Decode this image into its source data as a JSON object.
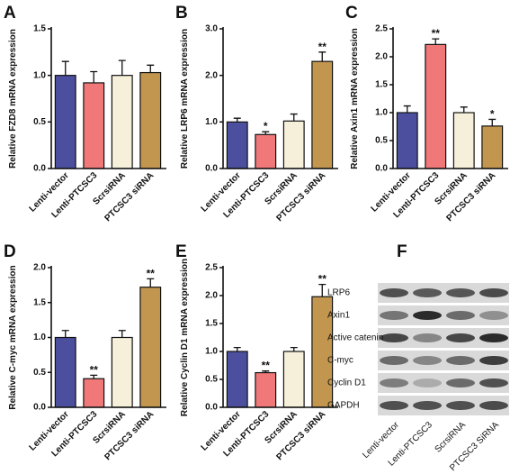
{
  "chart_data": [
    {
      "type": "bar",
      "panel": "A",
      "y_label": "Relative FZD8 mRNA expression",
      "categories": [
        "Lenti-vector",
        "Lenti-PTCSC3",
        "ScrsiRNA",
        "PTCSC3 siRNA"
      ],
      "values": [
        1.0,
        0.92,
        1.0,
        1.03
      ],
      "errors": [
        0.15,
        0.12,
        0.16,
        0.08
      ],
      "significance": [
        null,
        null,
        null,
        null
      ],
      "colors": [
        "#4b4f9e",
        "#f07878",
        "#f6f0da",
        "#c3964f"
      ],
      "ylim": [
        0,
        1.5
      ],
      "yticks": [
        {
          "value": 0,
          "label": "0.0"
        },
        {
          "value": 0.5,
          "label": "0.5"
        },
        {
          "value": 1,
          "label": "1.0"
        },
        {
          "value": 1.5,
          "label": "1.5"
        }
      ]
    },
    {
      "type": "bar",
      "panel": "B",
      "y_label": "Relative LRP6 mRNA expression",
      "categories": [
        "Lenti-vector",
        "Lenti-PTCSC3",
        "ScrsiRNA",
        "PTCSC3 siRNA"
      ],
      "values": [
        1.0,
        0.73,
        1.02,
        2.3
      ],
      "errors": [
        0.08,
        0.06,
        0.15,
        0.2
      ],
      "significance": [
        null,
        "*",
        null,
        "**"
      ],
      "colors": [
        "#4b4f9e",
        "#f07878",
        "#f6f0da",
        "#c3964f"
      ],
      "ylim": [
        0,
        3
      ],
      "yticks": [
        {
          "value": 0,
          "label": "0.0"
        },
        {
          "value": 1,
          "label": "1.0"
        },
        {
          "value": 2,
          "label": "2.0"
        },
        {
          "value": 3,
          "label": "3.0"
        }
      ]
    },
    {
      "type": "bar",
      "panel": "C",
      "y_label": "Relative Axin1 mRNA expression",
      "categories": [
        "Lenti-vector",
        "Lenti-PTCSC3",
        "ScrsiRNA",
        "PTCSC3 siRNA"
      ],
      "values": [
        1.0,
        2.22,
        1.0,
        0.76
      ],
      "errors": [
        0.12,
        0.1,
        0.1,
        0.12
      ],
      "significance": [
        null,
        "**",
        null,
        "*"
      ],
      "colors": [
        "#4b4f9e",
        "#f07878",
        "#f6f0da",
        "#c3964f"
      ],
      "ylim": [
        0,
        2.5
      ],
      "yticks": [
        {
          "value": 0,
          "label": "0.0"
        },
        {
          "value": 0.5,
          "label": "0.5"
        },
        {
          "value": 1,
          "label": "1.0"
        },
        {
          "value": 1.5,
          "label": "1.5"
        },
        {
          "value": 2,
          "label": "2.0"
        },
        2.5
      ]
    },
    {
      "type": "bar",
      "panel": "D",
      "y_label": "Relative C-myc mRNA expression",
      "categories": [
        "Lenti-vector",
        "Lenti-PTCSC3",
        "ScrsiRNA",
        "PTCSC3 siRNA"
      ],
      "values": [
        1.0,
        0.41,
        1.0,
        1.72
      ],
      "errors": [
        0.1,
        0.05,
        0.1,
        0.12
      ],
      "significance": [
        null,
        "**",
        null,
        "**"
      ],
      "colors": [
        "#4b4f9e",
        "#f07878",
        "#f6f0da",
        "#c3964f"
      ],
      "ylim": [
        0,
        2
      ],
      "yticks": [
        {
          "value": 0,
          "label": "0.0"
        },
        {
          "value": 0.5,
          "label": "0.5"
        },
        {
          "value": 1,
          "label": "1.0"
        },
        {
          "value": 1.5,
          "label": "1.5"
        },
        {
          "value": 2,
          "label": "2.0"
        }
      ]
    },
    {
      "type": "bar",
      "panel": "E",
      "y_label": "Relative Cyclin D1 mRNA expression",
      "categories": [
        "Lenti-vector",
        "Lenti-PTCSC3",
        "ScrsiRNA",
        "PTCSC3 siRNA"
      ],
      "values": [
        1.0,
        0.62,
        1.0,
        1.98
      ],
      "errors": [
        0.07,
        0.03,
        0.07,
        0.22
      ],
      "significance": [
        null,
        "**",
        null,
        "**"
      ],
      "colors": [
        "#4b4f9e",
        "#f07878",
        "#f6f0da",
        "#c3964f"
      ],
      "ylim": [
        0,
        2.5
      ],
      "yticks": [
        {
          "value": 0,
          "label": "0.0"
        },
        {
          "value": 0.5,
          "label": "0.5"
        },
        {
          "value": 1,
          "label": "1.0"
        },
        {
          "value": 1.5,
          "label": "1.5"
        },
        {
          "value": 2,
          "label": "2.0"
        },
        2.5
      ]
    }
  ],
  "blot": {
    "panel": "F",
    "rows": [
      "LRP6",
      "Axin1",
      "Active catenin",
      "C-myc",
      "Cyclin D1",
      "GAPDH"
    ],
    "lanes": [
      "Lenti-vector",
      "Lenti-PTCSC3",
      "ScrsiRNA",
      "PTCSC3 SiRNA"
    ]
  }
}
